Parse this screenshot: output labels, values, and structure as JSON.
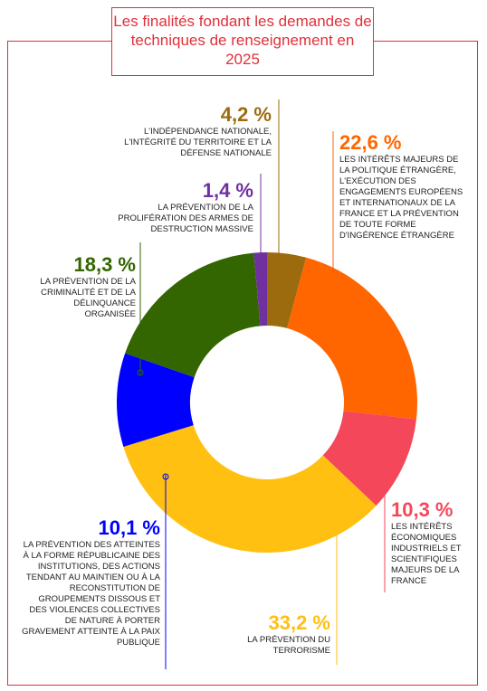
{
  "chart_data": {
    "type": "donut",
    "title": "Les finalités fondant les demandes de techniques de renseignement en 2025",
    "categories": [
      "L'indépendance nationale, l'intégrité du territoire et la défense nationale",
      "Les intérêts majeurs de la politique étrangère, l'exécution des engagements européens et internationaux de la France et la prévention de toute forme d'ingérence étrangère",
      "Les intérêts économiques industriels et scientifiques majeurs de la France",
      "La prévention du terrorisme",
      "La prévention des atteintes à la forme républicaine des institutions, des actions tendant au maintien ou à la reconstitution de groupements dissous et des violences collectives de nature à porter gravement atteinte à la paix publique",
      "La prévention de la criminalité et de la délinquance organisée",
      "La prévention de la prolifération des armes de destruction massive"
    ],
    "values": [
      4.2,
      22.6,
      10.3,
      33.2,
      10.1,
      18.3,
      1.4
    ],
    "value_labels": [
      "4,2 %",
      "22,6 %",
      "10,3 %",
      "33,2 %",
      "10,1 %",
      "18,3 %",
      "1,4 %"
    ],
    "colors": [
      "#9c6b0e",
      "#ff6600",
      "#f5475a",
      "#ffc012",
      "#0000ff",
      "#336600",
      "#7030a0"
    ]
  }
}
